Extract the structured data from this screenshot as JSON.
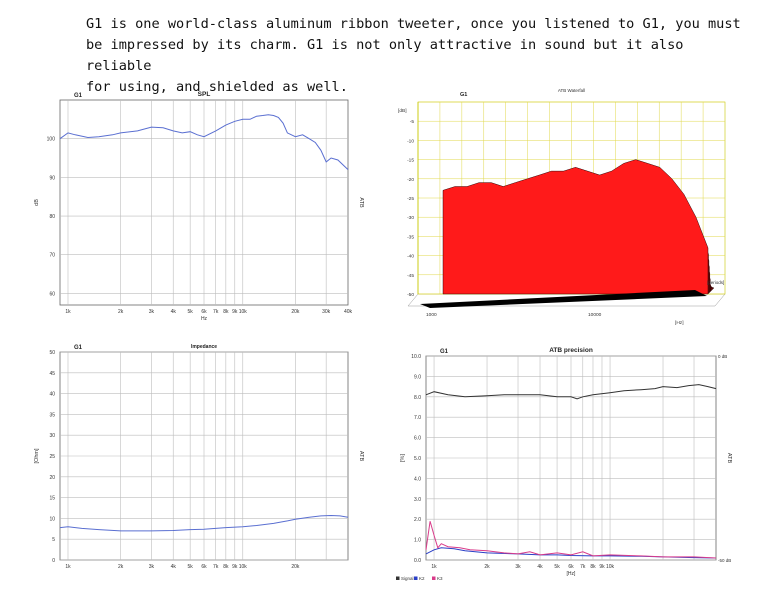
{
  "intro": {
    "line1": "G1 is one world-class aluminum ribbon tweeter, once you listened to G1, you must",
    "line2": "be impressed by its charm. G1 is not only attractive in sound but it also reliable",
    "line3": "for using, and shielded as well."
  },
  "chart_data": [
    {
      "id": "spl",
      "type": "line",
      "title": "SPL",
      "subtitle": "G1",
      "xlabel": "Hz",
      "ylabel": "dB",
      "ylabel_right": "ATB",
      "xscale": "log",
      "xlim": [
        900,
        40000
      ],
      "ylim": [
        57,
        110
      ],
      "yticks": [
        60,
        70,
        80,
        90,
        100
      ],
      "xtick_labels": [
        {
          "v": 1000,
          "t": "1k"
        },
        {
          "v": 2000,
          "t": "2k"
        },
        {
          "v": 3000,
          "t": "3k"
        },
        {
          "v": 4000,
          "t": "4k"
        },
        {
          "v": 5000,
          "t": "5k"
        },
        {
          "v": 6000,
          "t": "6k"
        },
        {
          "v": 7000,
          "t": "7k"
        },
        {
          "v": 8000,
          "t": "8k"
        },
        {
          "v": 9000,
          "t": "9k"
        },
        {
          "v": 10000,
          "t": "10k"
        },
        {
          "v": 20000,
          "t": "20k"
        },
        {
          "v": 30000,
          "t": "30k"
        },
        {
          "v": 40000,
          "t": "40k"
        }
      ],
      "grid": true,
      "series": [
        {
          "color": "#5a6fd1",
          "x": [
            900,
            1000,
            1100,
            1300,
            1500,
            1800,
            2000,
            2500,
            3000,
            3500,
            4000,
            4500,
            5000,
            5500,
            6000,
            7000,
            8000,
            9000,
            10000,
            11000,
            12000,
            13000,
            14000,
            15000,
            16000,
            17000,
            18000,
            20000,
            22000,
            24000,
            26000,
            28000,
            30000,
            32000,
            35000,
            40000
          ],
          "y": [
            100,
            101.5,
            101,
            100.3,
            100.5,
            101,
            101.5,
            102,
            103,
            102.8,
            102,
            101.5,
            101.8,
            101,
            100.5,
            102,
            103.5,
            104.5,
            105,
            105,
            105.8,
            106,
            106.2,
            106,
            105.5,
            104,
            101.5,
            100.5,
            101,
            100,
            99,
            97,
            94,
            95,
            94.5,
            92
          ]
        }
      ]
    },
    {
      "id": "waterfall",
      "type": "area",
      "title": "ATB Waterfall",
      "subtitle": "G1",
      "ylabel": "[dB]",
      "xlabel": "[Hz]",
      "zlabel": "[periods]",
      "yticks": [
        0,
        -5,
        -10,
        -15,
        -20,
        -25,
        -30,
        -35,
        -40,
        -45,
        -50
      ],
      "ytick_labels": [
        "",
        "-5",
        "-10",
        "-15",
        "-20",
        "-25",
        "-30",
        "-35",
        "-40",
        "-45",
        "-50"
      ],
      "xtick_labels": [
        "1000",
        "10000"
      ],
      "ylim": [
        -50,
        0
      ],
      "fill_color": "#ff1a1a",
      "slices": 14,
      "front_profile_db": [
        -23,
        -22,
        -22,
        -21,
        -21,
        -22,
        -21,
        -20,
        -19,
        -18,
        -18,
        -17,
        -18,
        -19,
        -18,
        -16,
        -15,
        -16,
        -17,
        -20,
        -24,
        -30,
        -38
      ]
    },
    {
      "id": "impedance",
      "type": "line",
      "title": "Impedance",
      "subtitle": "G1",
      "ylabel": "[Ohm]",
      "ylabel_right": "ATB",
      "xscale": "log",
      "xlim": [
        900,
        40000
      ],
      "ylim": [
        0,
        50
      ],
      "yticks": [
        0,
        5,
        10,
        15,
        20,
        25,
        30,
        35,
        40,
        45,
        50
      ],
      "xtick_labels": [
        {
          "v": 1000,
          "t": "1k"
        },
        {
          "v": 2000,
          "t": "2k"
        },
        {
          "v": 3000,
          "t": "3k"
        },
        {
          "v": 4000,
          "t": "4k"
        },
        {
          "v": 5000,
          "t": "5k"
        },
        {
          "v": 6000,
          "t": "6k"
        },
        {
          "v": 7000,
          "t": "7k"
        },
        {
          "v": 8000,
          "t": "8k"
        },
        {
          "v": 9000,
          "t": "9k"
        },
        {
          "v": 10000,
          "t": "10k"
        },
        {
          "v": 20000,
          "t": "20k"
        }
      ],
      "grid": true,
      "series": [
        {
          "color": "#5a6fd1",
          "x": [
            900,
            1000,
            1200,
            1500,
            2000,
            3000,
            4000,
            5000,
            6000,
            7000,
            8000,
            10000,
            12000,
            15000,
            18000,
            20000,
            24000,
            28000,
            32000,
            36000,
            40000
          ],
          "y": [
            7.8,
            8.0,
            7.6,
            7.3,
            7.0,
            7.0,
            7.1,
            7.3,
            7.4,
            7.6,
            7.8,
            8.0,
            8.3,
            8.8,
            9.4,
            9.8,
            10.3,
            10.6,
            10.7,
            10.6,
            10.3
          ]
        }
      ]
    },
    {
      "id": "precision",
      "type": "line",
      "title": "ATB precision",
      "subtitle": "G1",
      "ylabel": "[%]",
      "ylabel_right": "ATB",
      "xlabel": "[Hz]",
      "xscale": "log",
      "xlim": [
        900,
        40000
      ],
      "ylim": [
        0,
        10
      ],
      "yticks": [
        0,
        1,
        2,
        3,
        4,
        5,
        6,
        7,
        8,
        9,
        10
      ],
      "ytick_labels": [
        "0.0",
        "1.0",
        "2.0",
        "3.0",
        "4.0",
        "5.0",
        "6.0",
        "7.0",
        "8.0",
        "9.0",
        "10.0"
      ],
      "right_top_label": "0 dB",
      "right_bottom_label": "-50 dB",
      "xtick_labels": [
        {
          "v": 1000,
          "t": "1k"
        },
        {
          "v": 2000,
          "t": "2k"
        },
        {
          "v": 3000,
          "t": "3k"
        },
        {
          "v": 4000,
          "t": "4k"
        },
        {
          "v": 5000,
          "t": "5k"
        },
        {
          "v": 6000,
          "t": "6k"
        },
        {
          "v": 7000,
          "t": "7k"
        },
        {
          "v": 8000,
          "t": "8k"
        },
        {
          "v": 9000,
          "t": "9k"
        },
        {
          "v": 10000,
          "t": "10k"
        }
      ],
      "grid": true,
      "legend": "bottom-left",
      "series": [
        {
          "name": "Signal",
          "color": "#333333",
          "x": [
            900,
            1000,
            1200,
            1500,
            2000,
            2500,
            3000,
            4000,
            5000,
            6000,
            6500,
            7000,
            8000,
            10000,
            12000,
            15000,
            18000,
            20000,
            24000,
            28000,
            32000,
            36000,
            40000
          ],
          "y": [
            8.1,
            8.25,
            8.1,
            8.0,
            8.05,
            8.1,
            8.1,
            8.1,
            8.0,
            8.0,
            7.9,
            8.0,
            8.1,
            8.2,
            8.3,
            8.35,
            8.4,
            8.5,
            8.45,
            8.55,
            8.6,
            8.5,
            8.4
          ]
        },
        {
          "name": "K2",
          "color": "#2a3fc7",
          "x": [
            900,
            1000,
            1100,
            1300,
            1500,
            2000,
            3000,
            4000,
            5000,
            6000,
            8000,
            10000,
            15000,
            20000,
            30000,
            40000
          ],
          "y": [
            0.3,
            0.5,
            0.6,
            0.55,
            0.45,
            0.35,
            0.3,
            0.25,
            0.25,
            0.22,
            0.2,
            0.2,
            0.18,
            0.15,
            0.12,
            0.1
          ]
        },
        {
          "name": "K3",
          "color": "#d93b8a",
          "x": [
            900,
            950,
            1000,
            1050,
            1100,
            1200,
            1400,
            1600,
            2000,
            2500,
            3000,
            3500,
            4000,
            5000,
            6000,
            7000,
            8000,
            10000,
            15000,
            20000,
            30000,
            40000
          ],
          "y": [
            0.5,
            1.9,
            1.2,
            0.6,
            0.8,
            0.65,
            0.6,
            0.5,
            0.45,
            0.35,
            0.3,
            0.4,
            0.25,
            0.35,
            0.25,
            0.4,
            0.2,
            0.25,
            0.2,
            0.15,
            0.15,
            0.1
          ]
        }
      ]
    }
  ]
}
